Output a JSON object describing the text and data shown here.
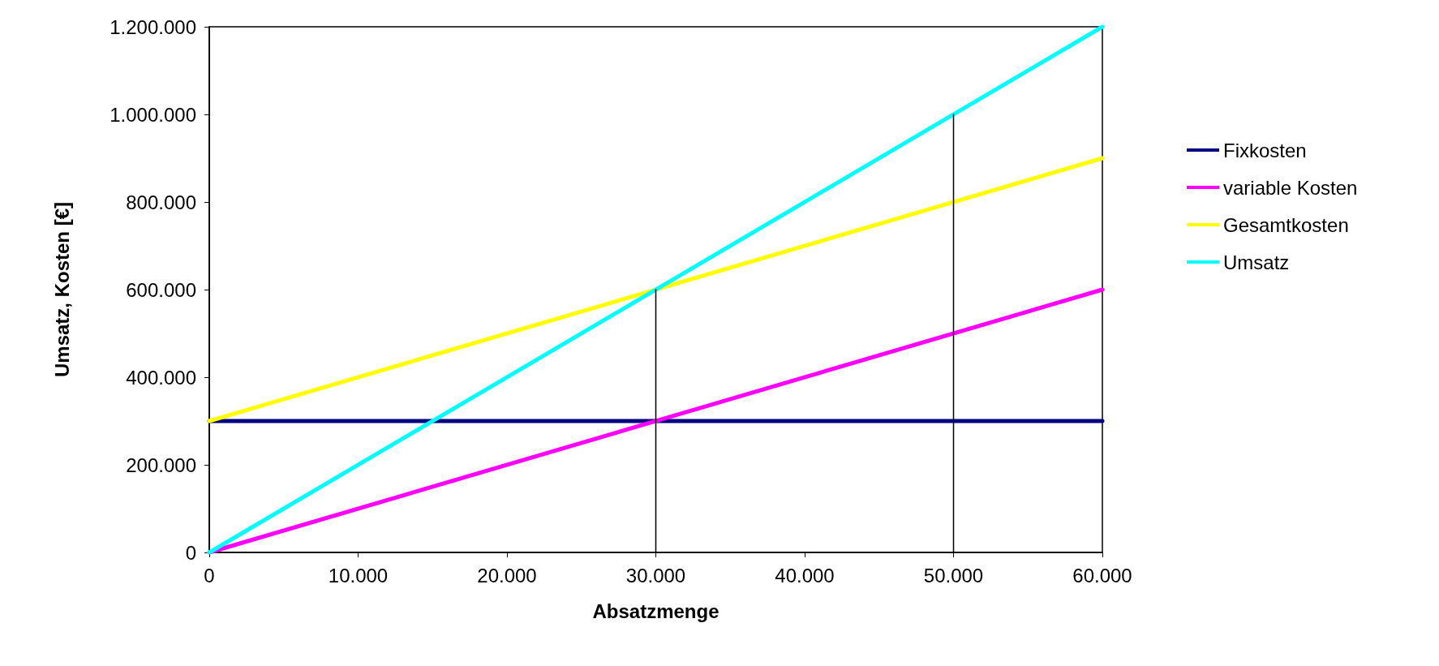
{
  "chart_data": {
    "type": "line",
    "xlabel": "Absatzmenge",
    "ylabel": "Umsatz, Kosten [€]",
    "xlim": [
      0,
      60000
    ],
    "ylim": [
      0,
      1200000
    ],
    "xticks": [
      0,
      {
        "value": 10000,
        "label": "10.000"
      },
      {
        "value": 20000,
        "label": "20.000"
      },
      {
        "value": 30000,
        "label": "30.000"
      },
      {
        "value": 40000,
        "label": "40.000"
      },
      {
        "value": 50000,
        "label": "50.000"
      },
      {
        "value": 60000,
        "label": "60.000"
      }
    ],
    "yticks": [
      0,
      {
        "value": 200000,
        "label": "200.000"
      },
      {
        "value": 400000,
        "label": "400.000"
      },
      {
        "value": 600000,
        "label": "600.000"
      },
      {
        "value": 800000,
        "label": "800.000"
      },
      {
        "value": 1000000,
        "label": "1.000.000"
      },
      {
        "value": 1200000,
        "label": "1.200.000"
      }
    ],
    "grid": false,
    "legend": "right",
    "marker": "none",
    "line_style": "solid",
    "series": [
      {
        "name": "Fixkosten",
        "color": "#000080",
        "x": [
          0,
          60000
        ],
        "values": [
          300000,
          300000
        ]
      },
      {
        "name": "variable Kosten",
        "color": "#ff00ff",
        "x": [
          0,
          60000
        ],
        "values": [
          0,
          600000
        ]
      },
      {
        "name": "Gesamtkosten",
        "color": "#ffff00",
        "x": [
          0,
          60000
        ],
        "values": [
          300000,
          900000
        ]
      },
      {
        "name": "Umsatz",
        "color": "#00ffff",
        "x": [
          0,
          60000
        ],
        "values": [
          0,
          1200000
        ]
      },
      {
        "color": "#000000",
        "x": [
          30000,
          30000
        ],
        "values": [
          0,
          600000
        ]
      },
      {
        "color": "#000000",
        "x": [
          50000,
          50000
        ],
        "values": [
          0,
          1000000
        ]
      }
    ]
  }
}
